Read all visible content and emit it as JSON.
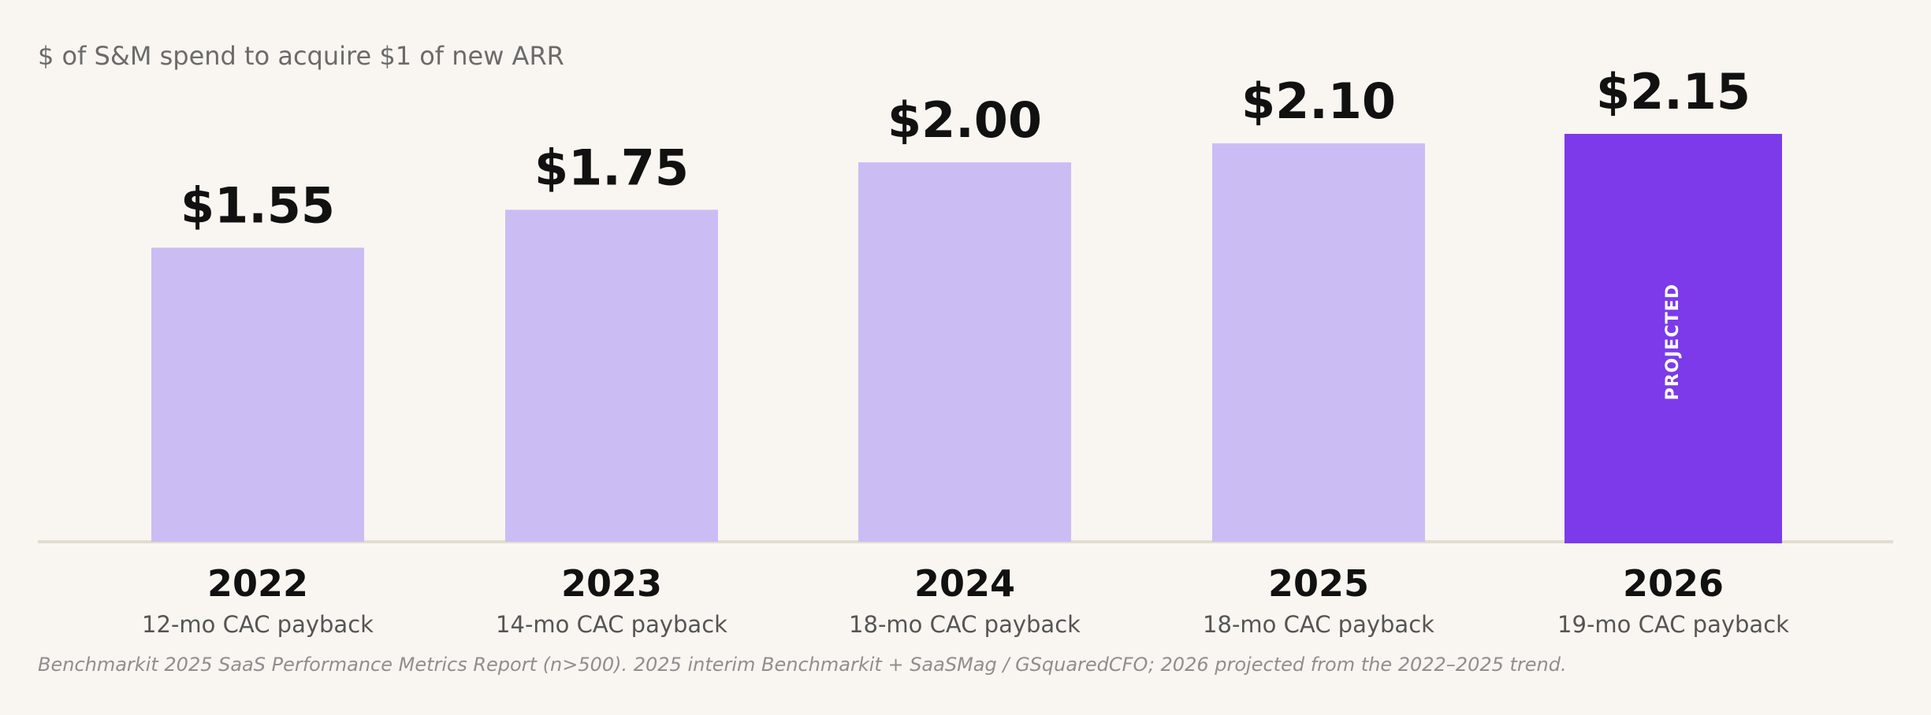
{
  "chart_data": {
    "type": "bar",
    "title": "",
    "subtitle": "$ of S&M spend to acquire $1 of new ARR",
    "categories": [
      "2022",
      "2023",
      "2024",
      "2025",
      "2026"
    ],
    "values": [
      1.55,
      1.75,
      2.0,
      2.1,
      2.15
    ],
    "value_labels": [
      "$1.55",
      "$1.75",
      "$2.00",
      "$2.10",
      "$2.15"
    ],
    "category_sublabels": [
      "12-mo CAC payback",
      "14-mo CAC payback",
      "18-mo CAC payback",
      "18-mo CAC payback",
      "19-mo CAC payback"
    ],
    "projected_index": 4,
    "projected_label": "PROJECTED",
    "ylim": [
      0,
      2.15
    ],
    "grid": false,
    "colors": {
      "actual": "#cbbdf4",
      "projected": "#7c3aea",
      "baseline": "#e2ddd0"
    },
    "source": "Benchmarkit 2025 SaaS Performance Metrics Report (n>500). 2025 interim Benchmarkit + SaaSMag / GSquaredCFO; 2026 projected from the 2022–2025 trend."
  }
}
